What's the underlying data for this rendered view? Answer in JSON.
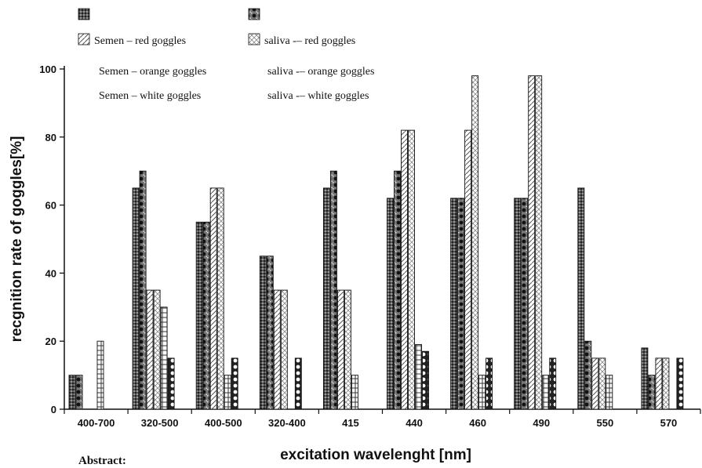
{
  "chart_data": {
    "type": "bar",
    "xlabel": "excitation wavelenght [nm]",
    "ylabel": "recgnition rate of goggles[%]",
    "ylim": [
      0,
      100
    ],
    "yticks": [
      0,
      20,
      40,
      60,
      80,
      100
    ],
    "grid": false,
    "legend_position": "top-left",
    "categories": [
      "400-700",
      "320-500",
      "400-500",
      "320-400",
      "415",
      "440",
      "460",
      "490",
      "550",
      "570"
    ],
    "series": [
      {
        "name": "",
        "pattern": "dots-dark",
        "values": [
          10,
          65,
          55,
          45,
          65,
          62,
          62,
          62,
          65,
          18
        ]
      },
      {
        "name": "",
        "pattern": "checker",
        "values": [
          10,
          70,
          55,
          45,
          70,
          70,
          62,
          62,
          20,
          10
        ]
      },
      {
        "name": "Semen – red goggles",
        "pattern": "diag-light",
        "values": [
          0,
          35,
          65,
          35,
          35,
          82,
          82,
          98,
          15,
          15
        ]
      },
      {
        "name": "saliva -– red goggles",
        "pattern": "hatch-light",
        "values": [
          0,
          35,
          65,
          35,
          35,
          82,
          98,
          98,
          15,
          15
        ]
      },
      {
        "name": "Semen – orange goggles",
        "pattern": "grid",
        "values": [
          20,
          30,
          10,
          0,
          10,
          19,
          10,
          10,
          10,
          0
        ]
      },
      {
        "name": "saliva -– orange goggles",
        "pattern": "circles",
        "values": [
          0,
          15,
          15,
          15,
          0,
          17,
          15,
          15,
          0,
          15
        ]
      },
      {
        "name": "Semen – white goggles",
        "pattern": "plain",
        "values": [
          0,
          0,
          0,
          0,
          0,
          0,
          0,
          0,
          0,
          0
        ]
      },
      {
        "name": "saliva -– white goggles",
        "pattern": "plain",
        "values": [
          0,
          0,
          0,
          0,
          0,
          0,
          0,
          0,
          0,
          0
        ]
      }
    ]
  },
  "legend": {
    "items": [
      {
        "label": "",
        "pattern": "dots-dark"
      },
      {
        "label": "",
        "pattern": "checker"
      },
      {
        "label": "Semen – red goggles",
        "pattern": "diag-light"
      },
      {
        "label": "saliva -– red goggles",
        "pattern": "hatch-light"
      },
      {
        "label": "Semen – orange goggles",
        "pattern": "none"
      },
      {
        "label": "saliva -– orange goggles",
        "pattern": "none"
      },
      {
        "label": "Semen – white goggles",
        "pattern": "none"
      },
      {
        "label": "saliva -– white goggles",
        "pattern": "none"
      }
    ]
  },
  "caption": {
    "text": "Abstract:"
  }
}
